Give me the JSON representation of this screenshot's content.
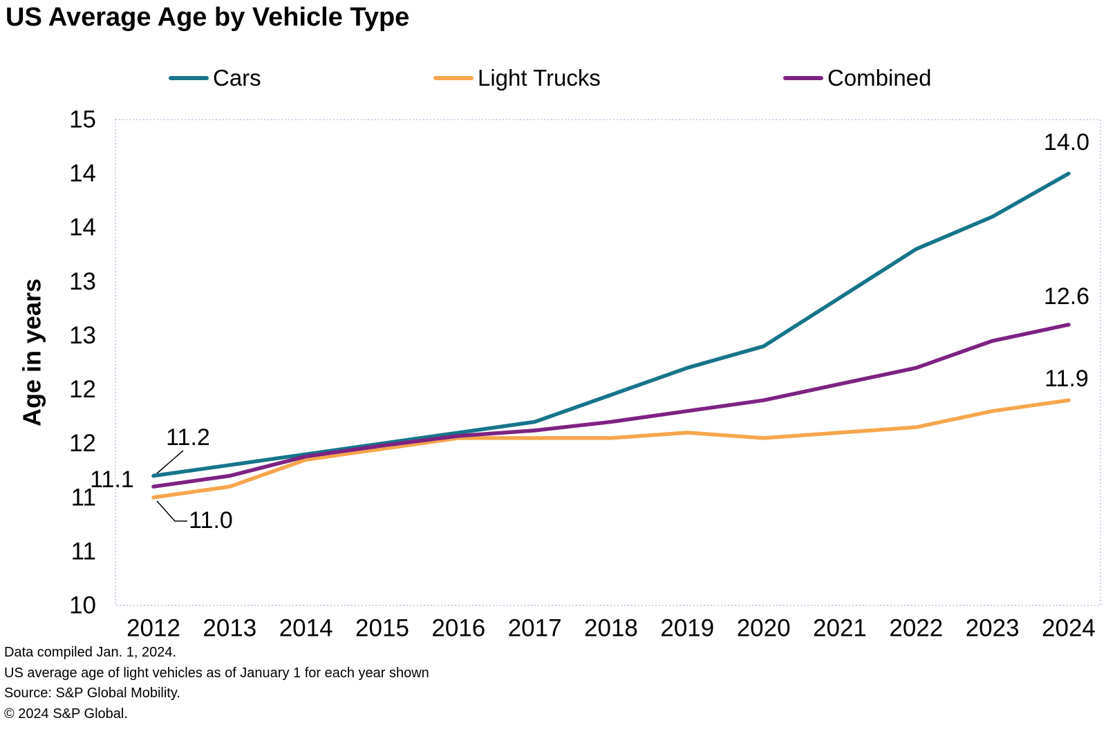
{
  "title": "US Average Age by Vehicle Type",
  "legend": {
    "items": [
      {
        "label": "Cars",
        "color": "#16758A"
      },
      {
        "label": "Light Trucks",
        "color": "#F6A64C"
      },
      {
        "label": "Combined",
        "color": "#7D2282"
      }
    ]
  },
  "y_axis": {
    "title": "Age in years",
    "ticks": [
      {
        "value": 14.5,
        "label": "15"
      },
      {
        "value": 14.0,
        "label": "14"
      },
      {
        "value": 13.5,
        "label": "14"
      },
      {
        "value": 13.0,
        "label": "13"
      },
      {
        "value": 12.5,
        "label": "13"
      },
      {
        "value": 12.0,
        "label": "12"
      },
      {
        "value": 11.5,
        "label": "12"
      },
      {
        "value": 11.0,
        "label": "11"
      },
      {
        "value": 10.5,
        "label": "11"
      },
      {
        "value": 10.0,
        "label": "10"
      }
    ]
  },
  "x_axis": {
    "labels": [
      "2012",
      "2013",
      "2014",
      "2015",
      "2016",
      "2017",
      "2018",
      "2019",
      "2020",
      "2021",
      "2022",
      "2023",
      "2024"
    ]
  },
  "footer": {
    "lines": [
      "Data compiled Jan. 1, 2024.",
      "US average age of light vehicles as of January 1 for each year shown",
      "Source: S&P Global Mobility.",
      "© 2024 S&P Global."
    ]
  },
  "chart_data": {
    "type": "line",
    "title": "US Average Age by Vehicle Type",
    "ylabel": "Age in years",
    "ylim": [
      10,
      14.5
    ],
    "y_tick_step": 0.5,
    "y_tick_labels_rounded_to_integer": true,
    "grid": false,
    "legend_position": "top",
    "x": [
      2012,
      2013,
      2014,
      2015,
      2016,
      2017,
      2018,
      2019,
      2020,
      2021,
      2022,
      2023,
      2024
    ],
    "series": [
      {
        "name": "Cars",
        "color": "#16758A",
        "values": [
          11.2,
          11.3,
          11.4,
          11.5,
          11.6,
          11.7,
          11.95,
          12.2,
          12.4,
          12.85,
          13.3,
          13.6,
          14.0
        ],
        "start_label": "11.2",
        "end_label": "14.0"
      },
      {
        "name": "Light Trucks",
        "color": "#F6A64C",
        "values": [
          11.0,
          11.1,
          11.35,
          11.45,
          11.55,
          11.55,
          11.55,
          11.6,
          11.55,
          11.6,
          11.65,
          11.8,
          11.9
        ],
        "start_label": "11.0",
        "end_label": "11.9"
      },
      {
        "name": "Combined",
        "color": "#7D2282",
        "values": [
          11.1,
          11.2,
          11.38,
          11.48,
          11.57,
          11.62,
          11.7,
          11.8,
          11.9,
          12.05,
          12.2,
          12.45,
          12.6
        ],
        "start_label": "11.1",
        "end_label": "12.6"
      }
    ]
  }
}
